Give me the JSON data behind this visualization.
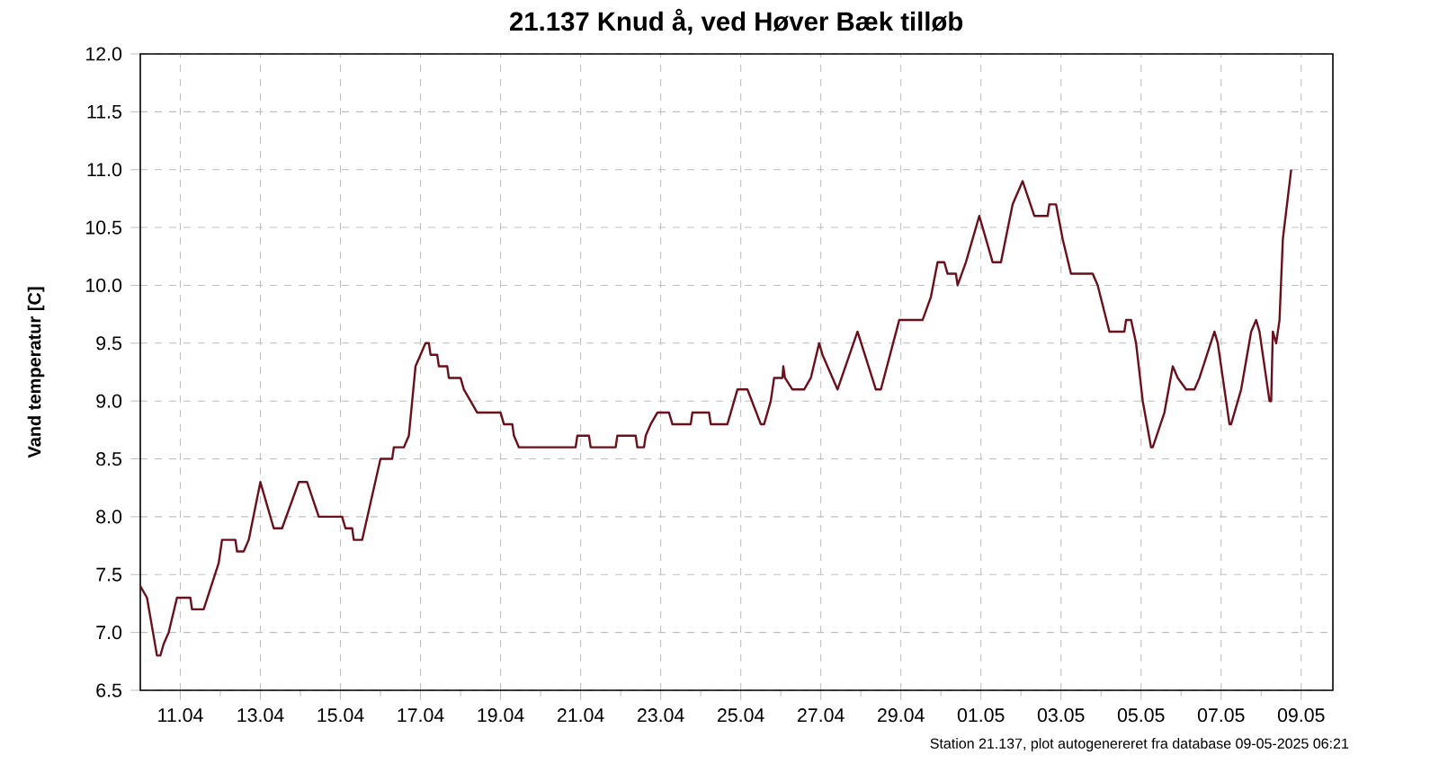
{
  "chart_data": {
    "type": "line",
    "title": "21.137  Knud å, ved Høver Bæk tilløb",
    "ylabel": "Vand temperatur [C]",
    "annotations": [
      "Station 21.137, plot autogenereret fra database 09-05-2025 06:21"
    ],
    "xlim": [
      "2025-04-10T00:00",
      "2025-05-09T19:00"
    ],
    "xticks": [
      {
        "value": "2025-04-11",
        "label": "11.04"
      },
      {
        "value": "2025-04-13",
        "label": "13.04"
      },
      {
        "value": "2025-04-15",
        "label": "15.04"
      },
      {
        "value": "2025-04-17",
        "label": "17.04"
      },
      {
        "value": "2025-04-19",
        "label": "19.04"
      },
      {
        "value": "2025-04-21",
        "label": "21.04"
      },
      {
        "value": "2025-04-23",
        "label": "23.04"
      },
      {
        "value": "2025-04-25",
        "label": "25.04"
      },
      {
        "value": "2025-04-27",
        "label": "27.04"
      },
      {
        "value": "2025-04-29",
        "label": "29.04"
      },
      {
        "value": "2025-05-01",
        "label": "01.05"
      },
      {
        "value": "2025-05-03",
        "label": "03.05"
      },
      {
        "value": "2025-05-05",
        "label": "05.05"
      },
      {
        "value": "2025-05-07",
        "label": "07.05"
      },
      {
        "value": "2025-05-09",
        "label": "09.05"
      }
    ],
    "ylim": [
      6.5,
      12.0
    ],
    "yticks": [
      {
        "value": 6.5,
        "label": "6.5"
      },
      {
        "value": 7.0,
        "label": "7.0"
      },
      {
        "value": 7.5,
        "label": "7.5"
      },
      {
        "value": 8.0,
        "label": "8.0"
      },
      {
        "value": 8.5,
        "label": "8.5"
      },
      {
        "value": 9.0,
        "label": "9.0"
      },
      {
        "value": 9.5,
        "label": "9.5"
      },
      {
        "value": 10.0,
        "label": "10.0"
      },
      {
        "value": 10.5,
        "label": "10.5"
      },
      {
        "value": 11.0,
        "label": "11.0"
      },
      {
        "value": 11.5,
        "label": "11.5"
      },
      {
        "value": 12.0,
        "label": "12.0"
      }
    ],
    "grid": true,
    "x": [
      "2025-04-10T00:00",
      "2025-04-10T04:00",
      "2025-04-10T10:00",
      "2025-04-10T12:00",
      "2025-04-10T14:00",
      "2025-04-10T17:00",
      "2025-04-10T22:00",
      "2025-04-11T06:00",
      "2025-04-11T07:00",
      "2025-04-11T14:00",
      "2025-04-11T23:00",
      "2025-04-12T01:00",
      "2025-04-12T09:00",
      "2025-04-12T10:00",
      "2025-04-12T14:00",
      "2025-04-12T17:00",
      "2025-04-13T00:00",
      "2025-04-13T08:00",
      "2025-04-13T13:00",
      "2025-04-13T23:00",
      "2025-04-14T04:00",
      "2025-04-14T11:00",
      "2025-04-15T01:00",
      "2025-04-15T03:00",
      "2025-04-15T07:00",
      "2025-04-15T08:00",
      "2025-04-15T13:00",
      "2025-04-16T00:00",
      "2025-04-16T07:00",
      "2025-04-16T08:00",
      "2025-04-16T14:00",
      "2025-04-16T17:00",
      "2025-04-16T21:00",
      "2025-04-17T03:00",
      "2025-04-17T05:00",
      "2025-04-17T06:00",
      "2025-04-17T10:00",
      "2025-04-17T11:00",
      "2025-04-17T16:00",
      "2025-04-17T17:00",
      "2025-04-18T00:00",
      "2025-04-18T02:00",
      "2025-04-18T06:00",
      "2025-04-18T10:00",
      "2025-04-19T00:00",
      "2025-04-19T02:00",
      "2025-04-19T07:00",
      "2025-04-19T08:00",
      "2025-04-19T11:00",
      "2025-04-20T21:00",
      "2025-04-20T22:00",
      "2025-04-21T05:00",
      "2025-04-21T06:00",
      "2025-04-21T21:00",
      "2025-04-21T22:00",
      "2025-04-22T09:00",
      "2025-04-22T10:00",
      "2025-04-22T14:00",
      "2025-04-22T15:00",
      "2025-04-22T18:00",
      "2025-04-22T22:00",
      "2025-04-23T05:00",
      "2025-04-23T07:00",
      "2025-04-23T18:00",
      "2025-04-23T19:00",
      "2025-04-24T05:00",
      "2025-04-24T06:00",
      "2025-04-24T16:00",
      "2025-04-24T22:00",
      "2025-04-25T04:00",
      "2025-04-25T12:00",
      "2025-04-25T14:00",
      "2025-04-25T18:00",
      "2025-04-25T20:00",
      "2025-04-26T01:00",
      "2025-04-26T01:30",
      "2025-04-26T02:30",
      "2025-04-26T07:00",
      "2025-04-26T14:00",
      "2025-04-26T18:00",
      "2025-04-26T23:00",
      "2025-04-27T01:00",
      "2025-04-27T10:00",
      "2025-04-27T22:00",
      "2025-04-28T09:00",
      "2025-04-28T12:00",
      "2025-04-28T23:00",
      "2025-04-29T13:00",
      "2025-04-29T18:00",
      "2025-04-29T22:00",
      "2025-04-30T02:00",
      "2025-04-30T04:00",
      "2025-04-30T09:00",
      "2025-04-30T10:00",
      "2025-04-30T15:00",
      "2025-04-30T23:00",
      "2025-05-01T07:00",
      "2025-05-01T12:00",
      "2025-05-01T19:00",
      "2025-05-02T01:00",
      "2025-05-02T08:00",
      "2025-05-02T16:00",
      "2025-05-02T17:00",
      "2025-05-02T21:00",
      "2025-05-03T01:00",
      "2025-05-03T06:00",
      "2025-05-03T19:00",
      "2025-05-03T22:00",
      "2025-05-04T05:00",
      "2025-05-04T14:00",
      "2025-05-04T15:00",
      "2025-05-04T18:00",
      "2025-05-04T21:00",
      "2025-05-05T01:00",
      "2025-05-05T06:00",
      "2025-05-05T07:00",
      "2025-05-05T14:00",
      "2025-05-05T19:00",
      "2025-05-05T22:00",
      "2025-05-06T03:00",
      "2025-05-06T08:00",
      "2025-05-06T11:00",
      "2025-05-06T20:00",
      "2025-05-06T22:00",
      "2025-05-07T05:00",
      "2025-05-07T06:00",
      "2025-05-07T12:00",
      "2025-05-07T18:00",
      "2025-05-07T21:00",
      "2025-05-07T23:00",
      "2025-05-08T05:00",
      "2025-05-08T06:00",
      "2025-05-08T07:00",
      "2025-05-08T09:00",
      "2025-05-08T11:00",
      "2025-05-08T13:00",
      "2025-05-08T18:00"
    ],
    "series": [
      {
        "color": "#6b0f1a",
        "values": [
          7.4,
          7.3,
          6.8,
          6.8,
          6.9,
          7.0,
          7.3,
          7.3,
          7.2,
          7.2,
          7.6,
          7.8,
          7.8,
          7.7,
          7.7,
          7.8,
          8.3,
          7.9,
          7.9,
          8.3,
          8.3,
          8.0,
          8.0,
          7.9,
          7.9,
          7.8,
          7.8,
          8.5,
          8.5,
          8.6,
          8.6,
          8.7,
          9.3,
          9.5,
          9.5,
          9.4,
          9.4,
          9.3,
          9.3,
          9.2,
          9.2,
          9.1,
          9.0,
          8.9,
          8.9,
          8.8,
          8.8,
          8.7,
          8.6,
          8.6,
          8.7,
          8.7,
          8.6,
          8.6,
          8.7,
          8.7,
          8.6,
          8.6,
          8.7,
          8.8,
          8.9,
          8.9,
          8.8,
          8.8,
          8.9,
          8.9,
          8.8,
          8.8,
          9.1,
          9.1,
          8.8,
          8.8,
          9.0,
          9.2,
          9.2,
          9.3,
          9.2,
          9.1,
          9.1,
          9.2,
          9.5,
          9.4,
          9.1,
          9.6,
          9.1,
          9.1,
          9.7,
          9.7,
          9.9,
          10.2,
          10.2,
          10.1,
          10.1,
          10.0,
          10.2,
          10.6,
          10.2,
          10.2,
          10.7,
          10.9,
          10.6,
          10.6,
          10.7,
          10.7,
          10.4,
          10.1,
          10.1,
          10.0,
          9.6,
          9.6,
          9.7,
          9.7,
          9.5,
          9.0,
          8.6,
          8.6,
          8.9,
          9.3,
          9.2,
          9.1,
          9.1,
          9.2,
          9.6,
          9.5,
          8.8,
          8.8,
          9.1,
          9.6,
          9.7,
          9.6,
          9.0,
          9.0,
          9.6,
          9.5,
          9.7,
          10.4,
          11.0
        ]
      }
    ]
  }
}
